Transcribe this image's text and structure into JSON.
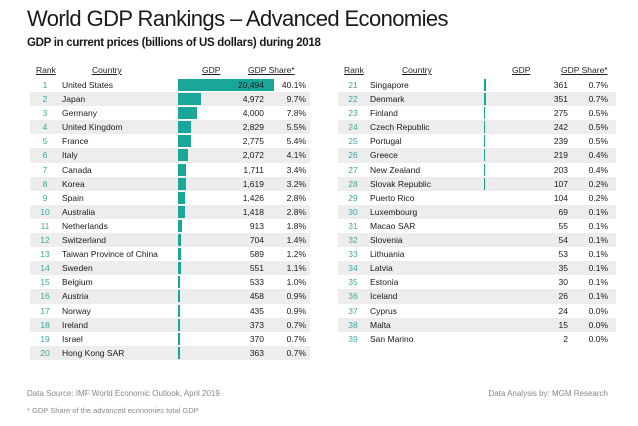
{
  "title": "World GDP Rankings – Advanced Economies",
  "subtitle": "GDP in current prices (billions of US dollars) during 2018",
  "headers": {
    "rank": "Rank",
    "country": "Country",
    "gdp": "GDP",
    "share": "GDP Share*"
  },
  "colors": {
    "bar": "#1aa79a",
    "rank": "#3aa9a0",
    "stripe": "#ededed"
  },
  "chart_data": {
    "type": "table",
    "title": "World GDP Rankings – Advanced Economies",
    "subtitle": "GDP in current prices (billions of US dollars) during 2018",
    "columns": [
      "Rank",
      "Country",
      "GDP",
      "GDP Share*"
    ],
    "rows": [
      {
        "rank": "1",
        "country": "United States",
        "gdp": "20,494",
        "share": "40.1%",
        "value": 20494
      },
      {
        "rank": "2",
        "country": "Japan",
        "gdp": "4,972",
        "share": "9.7%",
        "value": 4972
      },
      {
        "rank": "3",
        "country": "Germany",
        "gdp": "4,000",
        "share": "7.8%",
        "value": 4000
      },
      {
        "rank": "4",
        "country": "United Kingdom",
        "gdp": "2,829",
        "share": "5.5%",
        "value": 2829
      },
      {
        "rank": "5",
        "country": "France",
        "gdp": "2,775",
        "share": "5.4%",
        "value": 2775
      },
      {
        "rank": "6",
        "country": "Italy",
        "gdp": "2,072",
        "share": "4.1%",
        "value": 2072
      },
      {
        "rank": "7",
        "country": "Canada",
        "gdp": "1,711",
        "share": "3.4%",
        "value": 1711
      },
      {
        "rank": "8",
        "country": "Korea",
        "gdp": "1,619",
        "share": "3.2%",
        "value": 1619
      },
      {
        "rank": "9",
        "country": "Spain",
        "gdp": "1,426",
        "share": "2.8%",
        "value": 1426
      },
      {
        "rank": "10",
        "country": "Australia",
        "gdp": "1,418",
        "share": "2.8%",
        "value": 1418
      },
      {
        "rank": "11",
        "country": "Netherlands",
        "gdp": "913",
        "share": "1.8%",
        "value": 913
      },
      {
        "rank": "12",
        "country": "Switzerland",
        "gdp": "704",
        "share": "1.4%",
        "value": 704
      },
      {
        "rank": "13",
        "country": "Taiwan Province of China",
        "gdp": "589",
        "share": "1.2%",
        "value": 589
      },
      {
        "rank": "14",
        "country": "Sweden",
        "gdp": "551",
        "share": "1.1%",
        "value": 551
      },
      {
        "rank": "15",
        "country": "Belgium",
        "gdp": "533",
        "share": "1.0%",
        "value": 533
      },
      {
        "rank": "16",
        "country": "Austria",
        "gdp": "458",
        "share": "0.9%",
        "value": 458
      },
      {
        "rank": "17",
        "country": "Norway",
        "gdp": "435",
        "share": "0.9%",
        "value": 435
      },
      {
        "rank": "18",
        "country": "Ireland",
        "gdp": "373",
        "share": "0.7%",
        "value": 373
      },
      {
        "rank": "19",
        "country": "Israel",
        "gdp": "370",
        "share": "0.7%",
        "value": 370
      },
      {
        "rank": "20",
        "country": "Hong Kong SAR",
        "gdp": "363",
        "share": "0.7%",
        "value": 363
      },
      {
        "rank": "21",
        "country": "Singapore",
        "gdp": "361",
        "share": "0.7%",
        "value": 361
      },
      {
        "rank": "22",
        "country": "Denmark",
        "gdp": "351",
        "share": "0.7%",
        "value": 351
      },
      {
        "rank": "23",
        "country": "Finland",
        "gdp": "275",
        "share": "0.5%",
        "value": 275
      },
      {
        "rank": "24",
        "country": "Czech Republic",
        "gdp": "242",
        "share": "0.5%",
        "value": 242
      },
      {
        "rank": "25",
        "country": "Portugal",
        "gdp": "239",
        "share": "0.5%",
        "value": 239
      },
      {
        "rank": "26",
        "country": "Greece",
        "gdp": "219",
        "share": "0.4%",
        "value": 219
      },
      {
        "rank": "27",
        "country": "New Zealand",
        "gdp": "203",
        "share": "0.4%",
        "value": 203
      },
      {
        "rank": "28",
        "country": "Slovak Republic",
        "gdp": "107",
        "share": "0.2%",
        "value": 107
      },
      {
        "rank": "29",
        "country": "Puerto Rico",
        "gdp": "104",
        "share": "0.2%",
        "value": 104
      },
      {
        "rank": "30",
        "country": "Luxembourg",
        "gdp": "69",
        "share": "0.1%",
        "value": 69
      },
      {
        "rank": "31",
        "country": "Macao SAR",
        "gdp": "55",
        "share": "0.1%",
        "value": 55
      },
      {
        "rank": "32",
        "country": "Slovenia",
        "gdp": "54",
        "share": "0.1%",
        "value": 54
      },
      {
        "rank": "33",
        "country": "Lithuania",
        "gdp": "53",
        "share": "0.1%",
        "value": 53
      },
      {
        "rank": "34",
        "country": "Latvia",
        "gdp": "35",
        "share": "0.1%",
        "value": 35
      },
      {
        "rank": "35",
        "country": "Estonia",
        "gdp": "30",
        "share": "0.1%",
        "value": 30
      },
      {
        "rank": "36",
        "country": "Iceland",
        "gdp": "26",
        "share": "0.1%",
        "value": 26
      },
      {
        "rank": "37",
        "country": "Cyprus",
        "gdp": "24",
        "share": "0.0%",
        "value": 24
      },
      {
        "rank": "38",
        "country": "Malta",
        "gdp": "15",
        "share": "0.0%",
        "value": 15
      },
      {
        "rank": "39",
        "country": "San Marino",
        "gdp": "2",
        "share": "0.0%",
        "value": 2
      }
    ]
  },
  "footer": {
    "source": "Data Source: IMF World Economic Outlook, April 2019",
    "note": "* GDP Share of the advanced economies total GDP",
    "analysis": "Data Analysis by: MGM Research"
  }
}
